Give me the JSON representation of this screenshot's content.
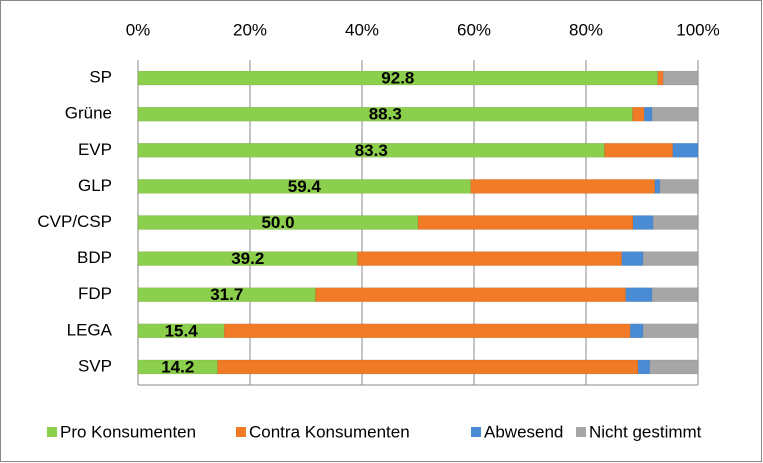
{
  "chart_data": {
    "type": "stacked-bar-horizontal",
    "categories": [
      "SP",
      "Grüne",
      "EVP",
      "GLP",
      "CVP/CSP",
      "BDP",
      "FDP",
      "LEGA",
      "SVP"
    ],
    "series": [
      {
        "name": "Pro Konsumenten",
        "color": "#8ccf4d",
        "values": [
          92.8,
          88.3,
          83.3,
          59.4,
          50.0,
          39.2,
          31.7,
          15.4,
          14.2
        ],
        "value_labels": [
          "92.8",
          "88.3",
          "83.3",
          "59.4",
          "50.0",
          "39.2",
          "31.7",
          "15.4",
          "14.2"
        ]
      },
      {
        "name": "Contra Konsumenten",
        "color": "#f07a26",
        "values": [
          1.0,
          2.1,
          12.2,
          32.9,
          38.4,
          47.2,
          55.4,
          72.5,
          75.1
        ]
      },
      {
        "name": "Abwesend",
        "color": "#4a8bd6",
        "values": [
          0,
          1.4,
          4.5,
          0.9,
          3.6,
          3.8,
          4.7,
          2.3,
          2.1
        ]
      },
      {
        "name": "Nicht gestimmt",
        "color": "#a6a6a6",
        "values": [
          6.2,
          8.2,
          0,
          6.8,
          8.0,
          9.8,
          8.2,
          9.8,
          8.6
        ]
      }
    ],
    "xlim": [
      0,
      100
    ],
    "xticks": [
      {
        "value": 0,
        "label": "0%"
      },
      {
        "value": 20,
        "label": "20%"
      },
      {
        "value": 40,
        "label": "40%"
      },
      {
        "value": 60,
        "label": "60%"
      },
      {
        "value": 80,
        "label": "80%"
      },
      {
        "value": 100,
        "label": "100%"
      }
    ],
    "grid": true,
    "legend": "bottom"
  }
}
